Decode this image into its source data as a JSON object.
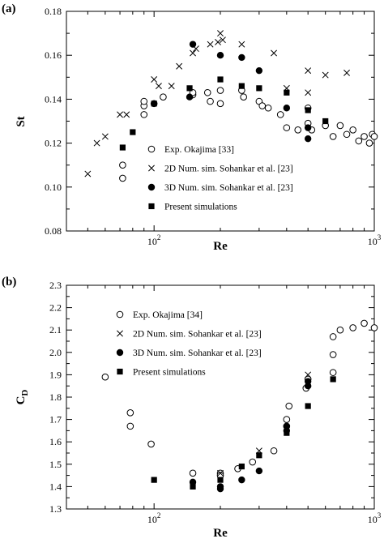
{
  "chart_data": [
    {
      "panel": "(a)",
      "type": "scatter",
      "xscale": "log",
      "xlim": [
        40,
        1000
      ],
      "ylim": [
        0.08,
        0.18
      ],
      "xlabel": "Re",
      "ylabel": "St",
      "x_ticks": [
        100,
        1000
      ],
      "x_tick_labels": [
        {
          "base": "10",
          "exp": "2"
        },
        {
          "base": "10",
          "exp": "3"
        }
      ],
      "y_ticks": [
        0.08,
        0.1,
        0.12,
        0.14,
        0.16,
        0.18
      ],
      "y_tick_labels": [
        "0.08",
        "0.10",
        "0.12",
        "0.14",
        "0.16",
        "0.18"
      ],
      "legend_position": "lower-center",
      "series": [
        {
          "name": "Exp. Okajima [33]",
          "marker": "open-circle",
          "points": [
            [
              72,
              0.104
            ],
            [
              72,
              0.11
            ],
            [
              90,
              0.133
            ],
            [
              90,
              0.137
            ],
            [
              90,
              0.139
            ],
            [
              100,
              0.138
            ],
            [
              110,
              0.141
            ],
            [
              150,
              0.142
            ],
            [
              150,
              0.143
            ],
            [
              175,
              0.143
            ],
            [
              180,
              0.139
            ],
            [
              200,
              0.144
            ],
            [
              200,
              0.138
            ],
            [
              250,
              0.144
            ],
            [
              255,
              0.141
            ],
            [
              300,
              0.139
            ],
            [
              310,
              0.137
            ],
            [
              330,
              0.136
            ],
            [
              375,
              0.133
            ],
            [
              400,
              0.127
            ],
            [
              450,
              0.126
            ],
            [
              500,
              0.136
            ],
            [
              500,
              0.129
            ],
            [
              520,
              0.126
            ],
            [
              600,
              0.128
            ],
            [
              650,
              0.123
            ],
            [
              700,
              0.128
            ],
            [
              750,
              0.124
            ],
            [
              800,
              0.126
            ],
            [
              850,
              0.121
            ],
            [
              900,
              0.123
            ],
            [
              950,
              0.12
            ],
            [
              980,
              0.124
            ],
            [
              1000,
              0.123
            ]
          ]
        },
        {
          "name": "2D Num. sim. Sohankar et al. [23]",
          "marker": "cross",
          "points": [
            [
              50,
              0.106
            ],
            [
              55,
              0.12
            ],
            [
              60,
              0.123
            ],
            [
              70,
              0.133
            ],
            [
              75,
              0.133
            ],
            [
              100,
              0.149
            ],
            [
              105,
              0.146
            ],
            [
              120,
              0.146
            ],
            [
              130,
              0.155
            ],
            [
              150,
              0.161
            ],
            [
              155,
              0.163
            ],
            [
              180,
              0.165
            ],
            [
              195,
              0.166
            ],
            [
              200,
              0.17
            ],
            [
              205,
              0.167
            ],
            [
              250,
              0.165
            ],
            [
              350,
              0.161
            ],
            [
              400,
              0.145
            ],
            [
              500,
              0.153
            ],
            [
              500,
              0.143
            ],
            [
              600,
              0.151
            ],
            [
              750,
              0.152
            ]
          ]
        },
        {
          "name": "3D Num. sim. Sohankar et al. [23]",
          "marker": "filled-circle",
          "points": [
            [
              145,
              0.141
            ],
            [
              150,
              0.165
            ],
            [
              200,
              0.16
            ],
            [
              250,
              0.159
            ],
            [
              300,
              0.153
            ],
            [
              400,
              0.136
            ],
            [
              500,
              0.127
            ],
            [
              500,
              0.122
            ]
          ]
        },
        {
          "name": "Present simulations",
          "marker": "filled-square",
          "points": [
            [
              72,
              0.118
            ],
            [
              80,
              0.125
            ],
            [
              100,
              0.138
            ],
            [
              145,
              0.145
            ],
            [
              200,
              0.149
            ],
            [
              250,
              0.146
            ],
            [
              300,
              0.145
            ],
            [
              400,
              0.143
            ],
            [
              500,
              0.135
            ],
            [
              600,
              0.13
            ]
          ]
        }
      ]
    },
    {
      "panel": "(b)",
      "type": "scatter",
      "xscale": "log",
      "xlim": [
        40,
        1000
      ],
      "ylim": [
        1.3,
        2.3
      ],
      "xlabel": "Re",
      "ylabel": {
        "base": "C",
        "sub": "D"
      },
      "x_ticks": [
        100,
        1000
      ],
      "x_tick_labels": [
        {
          "base": "10",
          "exp": "2"
        },
        {
          "base": "10",
          "exp": "3"
        }
      ],
      "y_ticks": [
        1.3,
        1.4,
        1.5,
        1.6,
        1.7,
        1.8,
        1.9,
        2.0,
        2.1,
        2.2,
        2.3
      ],
      "y_tick_labels": [
        "1.3",
        "1.4",
        "1.5",
        "1.6",
        "1.7",
        "1.8",
        "1.9",
        "2.0",
        "2.1",
        "2.2",
        "2.3"
      ],
      "legend_position": "top-left",
      "series": [
        {
          "name": "Exp. Okajima [34]",
          "marker": "open-circle",
          "points": [
            [
              60,
              1.89
            ],
            [
              78,
              1.73
            ],
            [
              78,
              1.67
            ],
            [
              97,
              1.59
            ],
            [
              150,
              1.46
            ],
            [
              200,
              1.46
            ],
            [
              200,
              1.45
            ],
            [
              240,
              1.48
            ],
            [
              280,
              1.51
            ],
            [
              350,
              1.56
            ],
            [
              400,
              1.7
            ],
            [
              400,
              1.67
            ],
            [
              410,
              1.76
            ],
            [
              490,
              1.84
            ],
            [
              500,
              1.88
            ],
            [
              650,
              2.07
            ],
            [
              650,
              1.99
            ],
            [
              650,
              1.91
            ],
            [
              700,
              2.1
            ],
            [
              800,
              2.11
            ],
            [
              900,
              2.13
            ],
            [
              1000,
              2.11
            ]
          ]
        },
        {
          "name": "2D Num. sim. Sohankar et al. [23]",
          "marker": "cross",
          "points": [
            [
              200,
              1.46
            ],
            [
              300,
              1.56
            ],
            [
              500,
              1.9
            ]
          ]
        },
        {
          "name": "3D Num. sim. Sohankar et al. [23]",
          "marker": "filled-circle",
          "points": [
            [
              150,
              1.42
            ],
            [
              200,
              1.4
            ],
            [
              200,
              1.39
            ],
            [
              250,
              1.43
            ],
            [
              300,
              1.47
            ],
            [
              400,
              1.67
            ],
            [
              400,
              1.65
            ],
            [
              500,
              1.87
            ],
            [
              500,
              1.85
            ]
          ]
        },
        {
          "name": "Present simulations",
          "marker": "filled-square",
          "points": [
            [
              100,
              1.43
            ],
            [
              150,
              1.4
            ],
            [
              200,
              1.43
            ],
            [
              250,
              1.49
            ],
            [
              300,
              1.54
            ],
            [
              400,
              1.64
            ],
            [
              500,
              1.76
            ],
            [
              650,
              1.88
            ]
          ]
        }
      ]
    }
  ]
}
